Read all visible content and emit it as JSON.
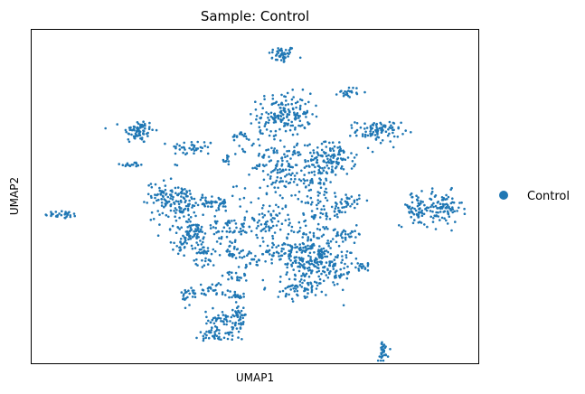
{
  "chart_data": {
    "type": "scatter",
    "title": "Sample: Control",
    "xlabel": "UMAP1",
    "ylabel": "UMAP2",
    "xlim": [
      0,
      100
    ],
    "ylim": [
      0,
      100
    ],
    "grid": false,
    "ticks_shown": false,
    "legend": {
      "placement": "right-outside",
      "entries": [
        {
          "name": "Control",
          "color": "#1f77b4"
        }
      ]
    },
    "series": [
      {
        "name": "Control",
        "color": "#1f77b4",
        "clusters": [
          {
            "cx": 56.0,
            "cy": 92.6,
            "sx": 1.5,
            "sy": 1.3,
            "n": 45
          },
          {
            "cx": 7.0,
            "cy": 44.6,
            "sx": 2.0,
            "sy": 0.6,
            "n": 30
          },
          {
            "cx": 23.8,
            "cy": 69.6,
            "sx": 1.8,
            "sy": 1.8,
            "n": 70
          },
          {
            "cx": 22.6,
            "cy": 59.6,
            "sx": 1.4,
            "sy": 0.4,
            "n": 18
          },
          {
            "cx": 36.0,
            "cy": 64.6,
            "sx": 2.5,
            "sy": 1.2,
            "n": 40
          },
          {
            "cx": 46.6,
            "cy": 68.3,
            "sx": 0.8,
            "sy": 0.6,
            "n": 15
          },
          {
            "cx": 43.6,
            "cy": 60.8,
            "sx": 0.5,
            "sy": 0.5,
            "n": 8
          },
          {
            "cx": 56.6,
            "cy": 74.6,
            "sx": 3.0,
            "sy": 3.2,
            "n": 160
          },
          {
            "cx": 56.0,
            "cy": 60.2,
            "sx": 2.4,
            "sy": 2.6,
            "n": 70
          },
          {
            "cx": 66.9,
            "cy": 61.2,
            "sx": 2.8,
            "sy": 2.5,
            "n": 130
          },
          {
            "cx": 71.0,
            "cy": 81.4,
            "sx": 1.2,
            "sy": 0.8,
            "n": 22
          },
          {
            "cx": 77.6,
            "cy": 69.6,
            "sx": 2.5,
            "sy": 1.6,
            "n": 90
          },
          {
            "cx": 86.0,
            "cy": 46.2,
            "sx": 1.8,
            "sy": 2.5,
            "n": 60
          },
          {
            "cx": 92.0,
            "cy": 46.4,
            "sx": 2.2,
            "sy": 2.5,
            "n": 90
          },
          {
            "cx": 29.6,
            "cy": 50.8,
            "sx": 1.8,
            "sy": 2.5,
            "n": 60
          },
          {
            "cx": 33.8,
            "cy": 48.3,
            "sx": 2.0,
            "sy": 2.5,
            "n": 60
          },
          {
            "cx": 40.6,
            "cy": 48.0,
            "sx": 2.0,
            "sy": 1.2,
            "n": 50
          },
          {
            "cx": 36.0,
            "cy": 39.6,
            "sx": 2.2,
            "sy": 1.4,
            "n": 50
          },
          {
            "cx": 44.0,
            "cy": 40.4,
            "sx": 2.5,
            "sy": 1.4,
            "n": 40
          },
          {
            "cx": 52.0,
            "cy": 42.3,
            "sx": 3.0,
            "sy": 2.0,
            "n": 45
          },
          {
            "cx": 63.0,
            "cy": 54.4,
            "sx": 3.0,
            "sy": 3.0,
            "n": 60
          },
          {
            "cx": 70.6,
            "cy": 48.2,
            "sx": 1.4,
            "sy": 1.4,
            "n": 35
          },
          {
            "cx": 66.6,
            "cy": 45.7,
            "sx": 2.0,
            "sy": 2.4,
            "n": 30
          },
          {
            "cx": 71.0,
            "cy": 38.8,
            "sx": 1.6,
            "sy": 1.0,
            "n": 28
          },
          {
            "cx": 54.0,
            "cy": 33.3,
            "sx": 2.0,
            "sy": 1.5,
            "n": 30
          },
          {
            "cx": 62.6,
            "cy": 31.8,
            "sx": 3.5,
            "sy": 5.0,
            "n": 280
          },
          {
            "cx": 68.6,
            "cy": 28.4,
            "sx": 1.8,
            "sy": 2.6,
            "n": 40
          },
          {
            "cx": 74.0,
            "cy": 29.0,
            "sx": 1.0,
            "sy": 0.6,
            "n": 15
          },
          {
            "cx": 59.6,
            "cy": 22.5,
            "sx": 2.5,
            "sy": 1.5,
            "n": 45
          },
          {
            "cx": 45.0,
            "cy": 34.1,
            "sx": 2.0,
            "sy": 2.2,
            "n": 40
          },
          {
            "cx": 45.6,
            "cy": 26.0,
            "sx": 1.4,
            "sy": 0.8,
            "n": 18
          },
          {
            "cx": 48.6,
            "cy": 30.6,
            "sx": 1.4,
            "sy": 1.0,
            "n": 15
          },
          {
            "cx": 40.6,
            "cy": 22.4,
            "sx": 1.5,
            "sy": 1.0,
            "n": 25
          },
          {
            "cx": 45.6,
            "cy": 20.2,
            "sx": 1.2,
            "sy": 0.8,
            "n": 18
          },
          {
            "cx": 46.6,
            "cy": 15.0,
            "sx": 0.8,
            "sy": 1.5,
            "n": 20
          },
          {
            "cx": 46.0,
            "cy": 11.2,
            "sx": 0.8,
            "sy": 1.5,
            "n": 20
          },
          {
            "cx": 35.6,
            "cy": 20.5,
            "sx": 1.0,
            "sy": 1.5,
            "n": 25
          },
          {
            "cx": 42.6,
            "cy": 13.2,
            "sx": 1.8,
            "sy": 1.2,
            "n": 45
          },
          {
            "cx": 41.6,
            "cy": 8.6,
            "sx": 2.0,
            "sy": 1.2,
            "n": 45
          },
          {
            "cx": 34.0,
            "cy": 35.8,
            "sx": 1.5,
            "sy": 1.2,
            "n": 30
          },
          {
            "cx": 38.6,
            "cy": 33.6,
            "sx": 1.2,
            "sy": 2.5,
            "n": 40
          },
          {
            "cx": 78.6,
            "cy": 3.2,
            "sx": 0.6,
            "sy": 1.8,
            "n": 30
          },
          {
            "cx": 55.0,
            "cy": 48.0,
            "sx": 6.0,
            "sy": 10.0,
            "n": 120
          },
          {
            "cx": 32.0,
            "cy": 44.5,
            "sx": 3.0,
            "sy": 3.0,
            "n": 30
          },
          {
            "cx": 50.0,
            "cy": 62.0,
            "sx": 4.0,
            "sy": 5.0,
            "n": 25
          }
        ]
      }
    ]
  }
}
